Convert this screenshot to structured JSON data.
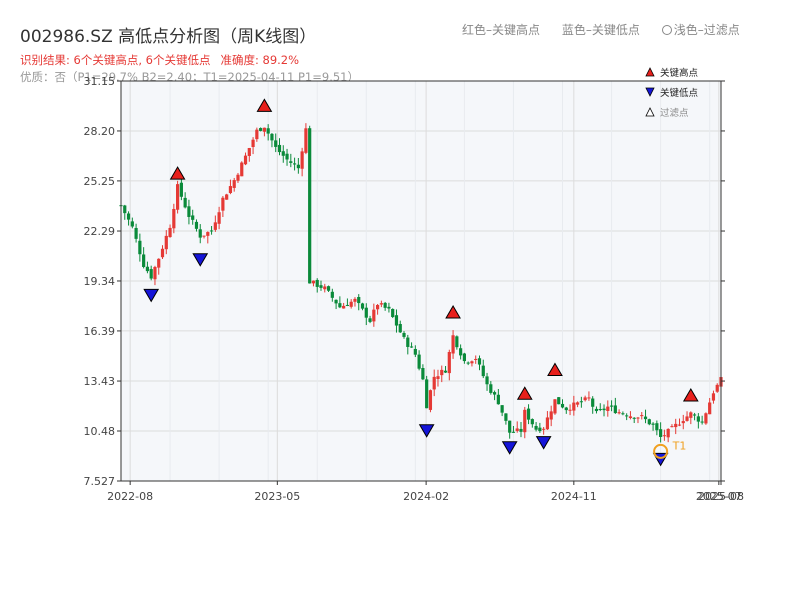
{
  "header": {
    "title": "002986.SZ 高低点分析图（周K线图）",
    "legend_red": "红色–关键高点",
    "legend_blue": "蓝色–关键低点",
    "legend_light": "浅色–过滤点",
    "summary": "识别结果: 6个关键高点, 6个关键低点",
    "accuracy": "准确度: 89.2%",
    "detail": "优质：否（P1=29.7%  B2=2.40；T1=2025-04-11 P1=9.51）"
  },
  "colors": {
    "up": "#e53935",
    "down": "#0a8a3a",
    "high": "#e8201c",
    "low": "#1515d8",
    "t1": "#f0a020",
    "grid": "#dcdcdc",
    "plot_bg": "#f5f7fa"
  },
  "chart_data": {
    "type": "candlestick",
    "ylim": [
      7.527,
      31.15
    ],
    "y_ticks": [
      7.527,
      10.48,
      13.43,
      16.39,
      19.34,
      22.29,
      25.25,
      28.2,
      31.15
    ],
    "y_tick_labels": [
      "7.527",
      "10.48",
      "13.43",
      "16.39",
      "19.34",
      "22.29",
      "25.25",
      "28.20",
      "31.15"
    ],
    "x_start": "2022-07-15",
    "x_end": "2025-08-01",
    "x_ticks": [
      {
        "date": "2022-08-01",
        "label": "2022-08"
      },
      {
        "date": "2023-05-01",
        "label": "2023-05"
      },
      {
        "date": "2024-02-01",
        "label": "2024-02"
      },
      {
        "date": "2024-11-01",
        "label": "2024-11"
      },
      {
        "date": "2025-07-28",
        "label": "2025-07"
      },
      {
        "date": "2025-08-01",
        "label": "2025-08"
      }
    ],
    "key_points": [
      {
        "kind": "high",
        "date": "2022-10-28",
        "price": 25.0
      },
      {
        "kind": "high",
        "date": "2023-04-07",
        "price": 29.0
      },
      {
        "kind": "high",
        "date": "2024-03-22",
        "price": 16.8
      },
      {
        "kind": "high",
        "date": "2024-08-02",
        "price": 12.0
      },
      {
        "kind": "high",
        "date": "2024-09-27",
        "price": 13.4
      },
      {
        "kind": "high",
        "date": "2025-06-06",
        "price": 11.9
      },
      {
        "kind": "low",
        "date": "2022-09-09",
        "price": 19.2
      },
      {
        "kind": "low",
        "date": "2022-12-09",
        "price": 21.3
      },
      {
        "kind": "low",
        "date": "2024-02-02",
        "price": 11.2
      },
      {
        "kind": "low",
        "date": "2024-07-05",
        "price": 10.2
      },
      {
        "kind": "low",
        "date": "2024-09-06",
        "price": 10.5
      },
      {
        "kind": "low",
        "date": "2025-04-11",
        "price": 9.51
      }
    ],
    "t1_marker": {
      "date": "2025-04-11",
      "price": 9.51,
      "label": "T1"
    },
    "legend_entries": [
      "关键高点",
      "关键低点",
      "过滤点"
    ],
    "close_path": [
      [
        "2022-07-15",
        23.8
      ],
      [
        "2022-08-05",
        22.5
      ],
      [
        "2022-08-26",
        20.3
      ],
      [
        "2022-09-09",
        19.6
      ],
      [
        "2022-09-23",
        20.7
      ],
      [
        "2022-10-14",
        22.6
      ],
      [
        "2022-10-28",
        24.9
      ],
      [
        "2022-11-18",
        23.2
      ],
      [
        "2022-12-09",
        22.0
      ],
      [
        "2022-12-30",
        22.3
      ],
      [
        "2023-01-20",
        24.2
      ],
      [
        "2023-02-10",
        25.3
      ],
      [
        "2023-03-03",
        26.7
      ],
      [
        "2023-03-24",
        28.2
      ],
      [
        "2023-04-07",
        28.5
      ],
      [
        "2023-04-28",
        27.2
      ],
      [
        "2023-05-19",
        26.5
      ],
      [
        "2023-06-09",
        26.0
      ],
      [
        "2023-06-23",
        28.3
      ],
      [
        "2023-06-30",
        19.3
      ],
      [
        "2023-07-28",
        18.9
      ],
      [
        "2023-08-25",
        17.8
      ],
      [
        "2023-09-22",
        18.2
      ],
      [
        "2023-10-20",
        17.0
      ],
      [
        "2023-11-03",
        18.0
      ],
      [
        "2023-11-24",
        17.6
      ],
      [
        "2023-12-22",
        15.9
      ],
      [
        "2024-01-12",
        15.0
      ],
      [
        "2024-01-26",
        13.5
      ],
      [
        "2024-02-02",
        12.0
      ],
      [
        "2024-02-16",
        13.7
      ],
      [
        "2024-03-08",
        14.1
      ],
      [
        "2024-03-22",
        16.1
      ],
      [
        "2024-04-12",
        14.6
      ],
      [
        "2024-05-03",
        14.8
      ],
      [
        "2024-05-24",
        13.2
      ],
      [
        "2024-06-14",
        12.2
      ],
      [
        "2024-07-05",
        10.4
      ],
      [
        "2024-07-26",
        10.5
      ],
      [
        "2024-08-02",
        11.6
      ],
      [
        "2024-08-23",
        10.6
      ],
      [
        "2024-09-06",
        10.7
      ],
      [
        "2024-09-27",
        12.3
      ],
      [
        "2024-10-18",
        11.8
      ],
      [
        "2024-11-08",
        12.1
      ],
      [
        "2024-11-29",
        12.4
      ],
      [
        "2024-12-13",
        11.5
      ],
      [
        "2025-01-03",
        11.9
      ],
      [
        "2025-01-24",
        11.6
      ],
      [
        "2025-02-14",
        11.4
      ],
      [
        "2025-03-07",
        11.3
      ],
      [
        "2025-03-28",
        10.8
      ],
      [
        "2025-04-11",
        10.1
      ],
      [
        "2025-05-02",
        10.6
      ],
      [
        "2025-05-23",
        11.2
      ],
      [
        "2025-06-06",
        11.5
      ],
      [
        "2025-06-27",
        11.0
      ],
      [
        "2025-07-18",
        12.8
      ],
      [
        "2025-08-01",
        13.5
      ]
    ]
  }
}
